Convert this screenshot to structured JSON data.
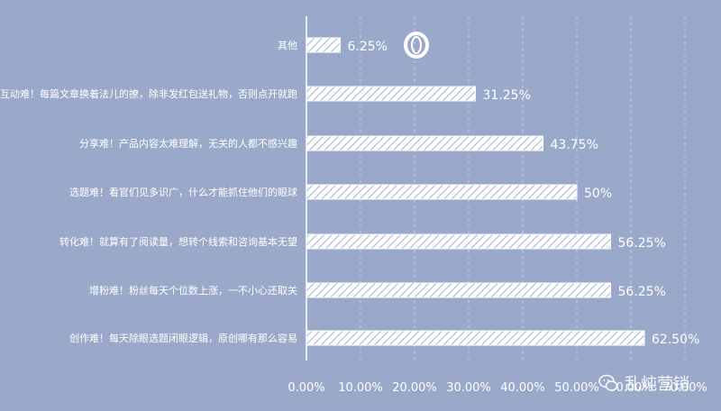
{
  "chart_data": {
    "type": "bar",
    "orientation": "horizontal",
    "categories": [
      "其他",
      "互动难！每篇文章换着法儿的撩，除非发红包送礼物，否则点开就跑",
      "分享难！产品内容太难理解，无关的人都不感兴趣",
      "选题难！看官们见多识广，什么才能抓住他们的眼球",
      "转化难！就算有了阅读量，想转个线索和咨询基本无望",
      "增粉难！粉丝每天个位数上涨，一不小心还取关",
      "创作难！每天除眼选题闭眼逻辑，原创哪有那么容易"
    ],
    "values": [
      6.25,
      31.25,
      43.75,
      50,
      56.25,
      56.25,
      62.5
    ],
    "value_labels": [
      "6.25%",
      "31.25%",
      "43.75%",
      "50%",
      "56.25%",
      "56.25%",
      "62.50%"
    ],
    "x_ticks": [
      "0.00%",
      "10.00%",
      "20.00%",
      "30.00%",
      "40.00%",
      "50.00%",
      "60.00%",
      "70.00%"
    ],
    "xlim": [
      0,
      70
    ],
    "grid": true,
    "bar_fill": "hatched white",
    "colors": {
      "background": "#9aa9c9",
      "bar": "#ffffff",
      "text": "#ffffff"
    }
  },
  "watermark": {
    "icon": "wechat-icon",
    "text": "乱炖营销"
  },
  "logo": {
    "icon": "ring-logo-icon"
  }
}
